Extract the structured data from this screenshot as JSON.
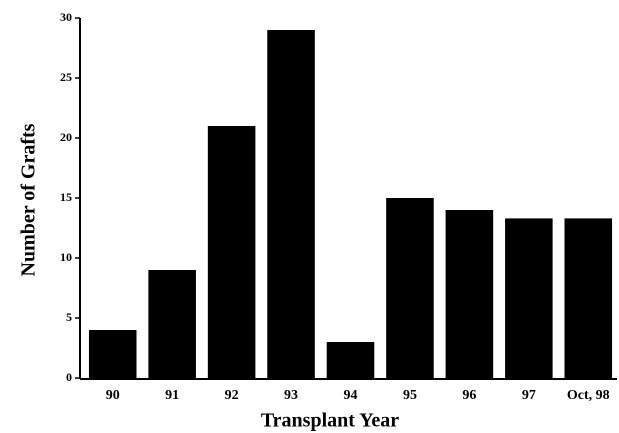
{
  "chart_data": {
    "type": "bar",
    "x_label": "Transplant Year",
    "y_label": "Number of Grafts",
    "categories": [
      "90",
      "91",
      "92",
      "93",
      "94",
      "95",
      "96",
      "97",
      "Oct, 98"
    ],
    "values": [
      4,
      9,
      21,
      29,
      3,
      15,
      14,
      13.3,
      13.3
    ],
    "color": "#000000",
    "ylim": [
      0,
      30
    ],
    "yticks": [
      0,
      5,
      10,
      15,
      20,
      25,
      30
    ],
    "grid": false
  }
}
